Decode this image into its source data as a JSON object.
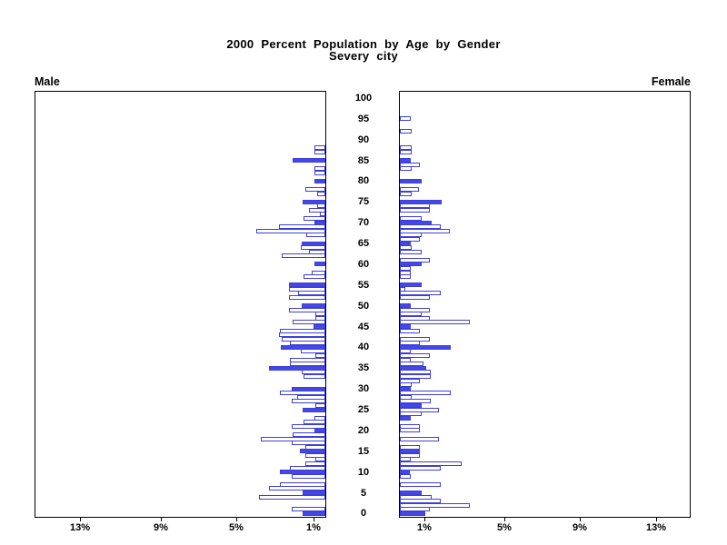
{
  "title": {
    "line1": "2000 Percent Population by Age by Gender",
    "line2": "Severy city"
  },
  "panel_labels": {
    "left": "Male",
    "right": "Female"
  },
  "chart_data": {
    "type": "bar",
    "subtype": "population-pyramid",
    "title": "2000 Percent Population by Age by Gender",
    "subtitle": "Severy city",
    "unit": "percent of total population",
    "orientation": "horizontal, back-to-back; male bars grow leftward, female bars grow rightward",
    "grid": "off",
    "age_axis": {
      "label": "Age (years), single-year bars",
      "min": 0,
      "max": 100,
      "tick_interval": 5,
      "tick_labels": [
        "0",
        "5",
        "10",
        "15",
        "20",
        "25",
        "30",
        "35",
        "40",
        "45",
        "50",
        "55",
        "60",
        "65",
        "70",
        "75",
        "80",
        "85",
        "90",
        "95",
        "100"
      ]
    },
    "pct_axis": {
      "min": 0,
      "max": 15,
      "tick_values": [
        1,
        5,
        9,
        13
      ],
      "tick_labels_left": [
        "13%",
        "9%",
        "5%",
        "1%"
      ],
      "tick_labels_right": [
        "1%",
        "5%",
        "9%",
        "13%"
      ]
    },
    "highlight_rule": "bars for ages listed in filled_ages are drawn solid blue; all other bars are white with blue outline",
    "series": [
      {
        "name": "Male",
        "side": "left",
        "ages": "index = age in years, 0 to 100",
        "values": [
          1.15,
          1.75,
          0,
          0,
          3.4,
          1.15,
          2.9,
          2.35,
          0,
          1.75,
          2.35,
          1.8,
          1.05,
          0.5,
          1.05,
          1.3,
          1.05,
          1.75,
          3.3,
          1.7,
          0.55,
          1.75,
          1.1,
          0.55,
          0,
          1.15,
          0.5,
          1.75,
          1.45,
          2.35,
          1.75,
          0,
          0,
          1.1,
          1.2,
          2.9,
          1.8,
          1.8,
          0.5,
          1.25,
          2.3,
          1.8,
          2.25,
          2.4,
          2.35,
          0.6,
          1.7,
          0.5,
          0.5,
          1.85,
          1.2,
          0,
          1.85,
          1.4,
          1.85,
          1.85,
          0,
          1.1,
          0.7,
          0,
          0.55,
          0,
          2.25,
          0.85,
          1.25,
          1.2,
          0,
          1.0,
          3.55,
          2.4,
          0.55,
          1.1,
          0.3,
          0.85,
          0.4,
          1.15,
          0,
          0.4,
          1.05,
          0,
          0.55,
          0,
          0.55,
          0.55,
          0,
          1.7,
          0,
          0.55,
          0.55,
          0,
          0,
          0,
          0,
          0,
          0,
          0,
          0,
          0,
          0,
          0,
          0
        ],
        "filled_ages": [
          0,
          5,
          10,
          15,
          20,
          25,
          30,
          35,
          40,
          45,
          50,
          55,
          60,
          65,
          70,
          75,
          80,
          85
        ]
      },
      {
        "name": "Female",
        "side": "right",
        "ages": "index = age in years, 0 to 100",
        "values": [
          1.3,
          1.55,
          3.6,
          2.1,
          1.65,
          1.1,
          0,
          2.1,
          0,
          0.55,
          0.5,
          2.1,
          3.2,
          0.55,
          1.05,
          1.05,
          1.05,
          0,
          2.0,
          0,
          1.05,
          1.05,
          0,
          0.55,
          1.1,
          2.0,
          1.1,
          1.6,
          0.6,
          2.6,
          0.55,
          0.6,
          1.05,
          1.6,
          1.6,
          1.35,
          1.2,
          0.55,
          1.55,
          0.55,
          2.6,
          1.05,
          1.55,
          0,
          1.05,
          0.55,
          3.6,
          1.55,
          1.1,
          1.55,
          0.55,
          0,
          1.55,
          2.1,
          0.3,
          1.1,
          0,
          0.55,
          0.55,
          0.55,
          1.1,
          1.55,
          0,
          1.1,
          0.6,
          0.55,
          1.05,
          1.1,
          2.55,
          2.1,
          1.65,
          1.1,
          0,
          1.55,
          1.55,
          2.15,
          0,
          0.6,
          1.0,
          0,
          1.1,
          0,
          0,
          0.6,
          1.05,
          0.55,
          0,
          0.6,
          0.6,
          0,
          0,
          0,
          0.6,
          0,
          0,
          0.55,
          0,
          0,
          0,
          0,
          0
        ],
        "filled_ages": [
          0,
          5,
          10,
          15,
          23,
          26,
          30,
          35,
          40,
          45,
          50,
          55,
          60,
          65,
          70,
          75,
          80,
          85
        ]
      }
    ],
    "colors": {
      "bar_blue": "#4547e6",
      "bar_outline_blue": "#3d3fdd",
      "outline_face": "#ffffff",
      "axis_black": "#000000",
      "background": "#ffffff"
    }
  }
}
